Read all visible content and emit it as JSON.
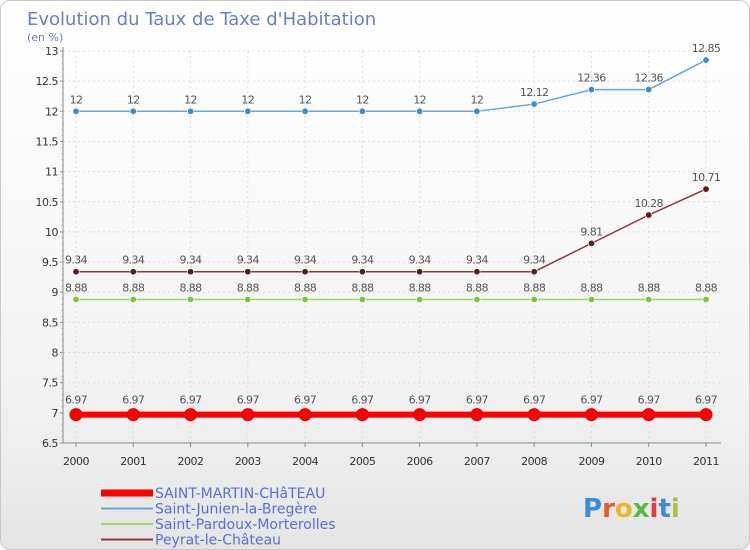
{
  "title": "Evolution du Taux de Taxe d'Habitation",
  "subtitle": "(en %)",
  "logo": {
    "text": "Proxiti",
    "colors": [
      "#3a8fd8",
      "#e85c2c",
      "#f0b429",
      "#59b847",
      "#e23b3b",
      "#3a8fd8",
      "#a8c43c"
    ]
  },
  "chart_data": {
    "type": "line",
    "title": "Evolution du Taux de Taxe d'Habitation",
    "ylabel": "(en %)",
    "xlabel": "",
    "x": [
      "2000",
      "2001",
      "2002",
      "2003",
      "2004",
      "2005",
      "2006",
      "2007",
      "2008",
      "2009",
      "2010",
      "2011"
    ],
    "ylim": [
      6.5,
      13
    ],
    "yticks": [
      6.5,
      7,
      7.5,
      8,
      8.5,
      9,
      9.5,
      10,
      10.5,
      11,
      11.5,
      12,
      12.5,
      13
    ],
    "ytick_labels": [
      "6.5",
      "7",
      "7.5",
      "8",
      "8.5",
      "9",
      "9.5",
      "10",
      "10.5",
      "11",
      "11.5",
      "12",
      "12.5",
      "13"
    ],
    "grid": true,
    "legend_position": "bottom-left",
    "series": [
      {
        "name": "SAINT-MARTIN-CHâTEAU",
        "color": "#ff0000",
        "bold": true,
        "values": [
          6.97,
          6.97,
          6.97,
          6.97,
          6.97,
          6.97,
          6.97,
          6.97,
          6.97,
          6.97,
          6.97,
          6.97
        ],
        "labels": [
          "6.97",
          "6.97",
          "6.97",
          "6.97",
          "6.97",
          "6.97",
          "6.97",
          "6.97",
          "6.97",
          "6.97",
          "6.97",
          "6.97"
        ]
      },
      {
        "name": "Saint-Junien-la-Bregère",
        "color": "#6aa6d8",
        "point_color": "#3c8dce",
        "bold": false,
        "values": [
          12,
          12,
          12,
          12,
          12,
          12,
          12,
          12,
          12.12,
          12.36,
          12.36,
          12.85
        ],
        "labels": [
          "12",
          "12",
          "12",
          "12",
          "12",
          "12",
          "12",
          "12",
          "12.12",
          "12.36",
          "12.36",
          "12.85"
        ]
      },
      {
        "name": "Saint-Pardoux-Morterolles",
        "color": "#9fd468",
        "point_color": "#7cc63c",
        "bold": false,
        "values": [
          8.88,
          8.88,
          8.88,
          8.88,
          8.88,
          8.88,
          8.88,
          8.88,
          8.88,
          8.88,
          8.88,
          8.88
        ],
        "labels": [
          "8.88",
          "8.88",
          "8.88",
          "8.88",
          "8.88",
          "8.88",
          "8.88",
          "8.88",
          "8.88",
          "8.88",
          "8.88",
          "8.88"
        ]
      },
      {
        "name": "Peyrat-le-Château",
        "color": "#8b3a3a",
        "point_color": "#5c1a1a",
        "bold": false,
        "values": [
          9.34,
          9.34,
          9.34,
          9.34,
          9.34,
          9.34,
          9.34,
          9.34,
          9.34,
          9.81,
          10.28,
          10.71
        ],
        "labels": [
          "9.34",
          "9.34",
          "9.34",
          "9.34",
          "9.34",
          "9.34",
          "9.34",
          "9.34",
          "9.34",
          "9.81",
          "10.28",
          "10.71"
        ]
      }
    ]
  }
}
